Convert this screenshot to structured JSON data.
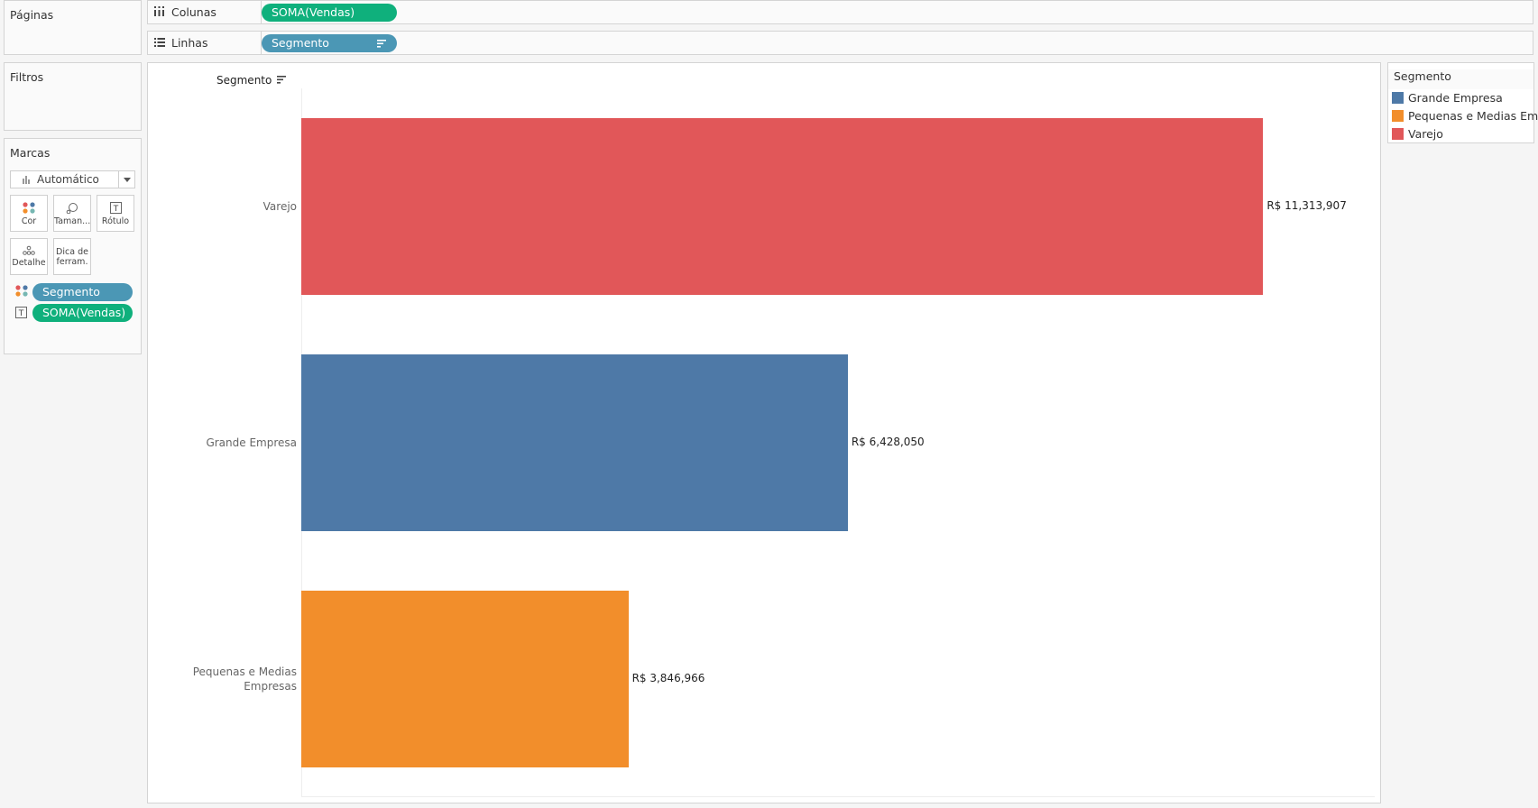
{
  "pages_card": {
    "title": "Páginas"
  },
  "filters_card": {
    "title": "Filtros"
  },
  "marks_card": {
    "title": "Marcas",
    "mark_type": "Automático",
    "buttons": {
      "color": "Cor",
      "size": "Taman...",
      "label": "Rótulo",
      "detail": "Detalhe",
      "tooltip_line1": "Dica de",
      "tooltip_line2": "ferram."
    },
    "pills": {
      "color_field": "Segmento",
      "label_field": "SOMA(Vendas)"
    }
  },
  "columns_shelf": {
    "label": "Colunas",
    "pill": "SOMA(Vendas)"
  },
  "rows_shelf": {
    "label": "Linhas",
    "pill": "Segmento"
  },
  "legend": {
    "title": "Segmento",
    "items": [
      {
        "label": "Grande Empresa",
        "color": "#4e79a7"
      },
      {
        "label": "Pequenas e Medias Em..",
        "color": "#f28e2b"
      },
      {
        "label": "Varejo",
        "color": "#e15759"
      }
    ]
  },
  "chart_data": {
    "type": "bar",
    "orientation": "horizontal",
    "title": "",
    "row_header": "Segmento",
    "categories": [
      "Varejo",
      "Grande Empresa",
      "Pequenas e Medias Empresas"
    ],
    "category_lines": [
      [
        "Varejo"
      ],
      [
        "Grande Empresa"
      ],
      [
        "Pequenas e Medias",
        "Empresas"
      ]
    ],
    "values": [
      11313907,
      6428050,
      3846966
    ],
    "value_labels": [
      "R$ 11,313,907",
      "R$ 6,428,050",
      "R$ 3,846,966"
    ],
    "colors": [
      "#e15759",
      "#4e79a7",
      "#f28e2b"
    ],
    "xlim": [
      0,
      12000000
    ],
    "grid": false,
    "legend_position": "right"
  }
}
